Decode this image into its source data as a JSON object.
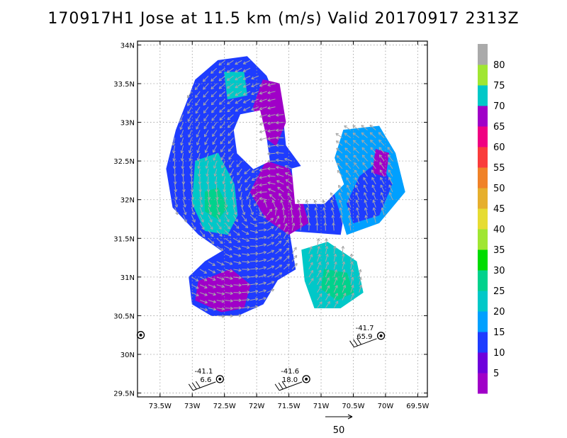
{
  "title": "170917H1 Jose at 11.5 km (m/s) Valid 20170917  2313Z",
  "chart_data": {
    "type": "heatmap",
    "title": "170917H1 Jose at 11.5 km (m/s) Valid 20170917  2313Z",
    "x_ticks": [
      "73.5W",
      "73W",
      "72.5W",
      "72W",
      "71.5W",
      "71W",
      "70.5W",
      "70W",
      "69.5W"
    ],
    "y_ticks": [
      "29.5N",
      "30N",
      "30.5N",
      "31N",
      "31.5N",
      "32N",
      "32.5N",
      "33N",
      "33.5N",
      "34N"
    ],
    "xlim": [
      -73.85,
      -69.35
    ],
    "ylim": [
      29.45,
      34.05
    ],
    "grid": true,
    "colorbar": {
      "labels": [
        "5",
        "10",
        "15",
        "20",
        "25",
        "30",
        "35",
        "40",
        "45",
        "50",
        "55",
        "60",
        "65",
        "70",
        "75",
        "80"
      ],
      "colors": [
        "#a000c8",
        "#6e00dc",
        "#1e3cff",
        "#00a0ff",
        "#00c8c8",
        "#00d28c",
        "#00dc00",
        "#a0e632",
        "#e6dc32",
        "#e6af2d",
        "#f08228",
        "#fa3c3c",
        "#f00082",
        "#a000c8",
        "#00c8c8",
        "#a0e632",
        "#aaaaaa"
      ]
    },
    "regions": [
      {
        "name": "north lobe",
        "color": "#1e3cff",
        "poly": [
          [
            -72.95,
            33.55
          ],
          [
            -72.6,
            33.8
          ],
          [
            -72.15,
            33.85
          ],
          [
            -71.85,
            33.6
          ],
          [
            -71.6,
            33.1
          ],
          [
            -71.55,
            32.7
          ],
          [
            -71.2,
            32.3
          ],
          [
            -70.6,
            32.05
          ],
          [
            -70.7,
            31.55
          ],
          [
            -71.5,
            31.6
          ],
          [
            -71.4,
            31.1
          ],
          [
            -71.9,
            30.85
          ],
          [
            -72.3,
            31.2
          ],
          [
            -72.9,
            31.55
          ],
          [
            -73.3,
            31.9
          ],
          [
            -73.4,
            32.4
          ],
          [
            -73.25,
            32.9
          ]
        ]
      },
      {
        "name": "southwest lobe",
        "color": "#1e3cff",
        "poly": [
          [
            -72.4,
            31.4
          ],
          [
            -72.0,
            31.25
          ],
          [
            -71.65,
            31.0
          ],
          [
            -71.9,
            30.65
          ],
          [
            -72.3,
            30.5
          ],
          [
            -72.7,
            30.5
          ],
          [
            -73.0,
            30.65
          ],
          [
            -73.05,
            31.0
          ],
          [
            -72.8,
            31.2
          ]
        ]
      },
      {
        "name": "southeast lobe",
        "color": "#00c8c8",
        "poly": [
          [
            -71.3,
            31.35
          ],
          [
            -70.9,
            31.45
          ],
          [
            -70.45,
            31.2
          ],
          [
            -70.35,
            30.8
          ],
          [
            -70.7,
            30.6
          ],
          [
            -71.1,
            30.6
          ],
          [
            -71.25,
            30.95
          ]
        ]
      },
      {
        "name": "east lobe",
        "color": "#00a0ff",
        "poly": [
          [
            -70.65,
            32.9
          ],
          [
            -70.1,
            32.95
          ],
          [
            -69.85,
            32.6
          ],
          [
            -69.7,
            32.1
          ],
          [
            -70.1,
            31.7
          ],
          [
            -70.6,
            31.55
          ],
          [
            -70.8,
            32.1
          ],
          [
            -70.8,
            32.5
          ]
        ]
      },
      {
        "name": "east lobe core",
        "color": "#1e3cff",
        "poly": [
          [
            -70.4,
            32.3
          ],
          [
            -70.1,
            32.5
          ],
          [
            -69.9,
            32.2
          ],
          [
            -70.1,
            31.8
          ],
          [
            -70.5,
            31.7
          ],
          [
            -70.6,
            31.95
          ]
        ]
      },
      {
        "name": "purple north",
        "color": "#a000c8",
        "poly": [
          [
            -71.9,
            33.55
          ],
          [
            -71.65,
            33.5
          ],
          [
            -71.55,
            33.0
          ],
          [
            -71.7,
            32.7
          ],
          [
            -71.95,
            32.85
          ],
          [
            -72.05,
            33.2
          ]
        ]
      },
      {
        "name": "purple center",
        "color": "#a000c8",
        "poly": [
          [
            -71.85,
            32.5
          ],
          [
            -71.5,
            32.4
          ],
          [
            -71.3,
            32.0
          ],
          [
            -71.2,
            31.7
          ],
          [
            -71.5,
            31.55
          ],
          [
            -71.85,
            31.75
          ],
          [
            -72.1,
            32.1
          ]
        ]
      },
      {
        "name": "purple southwest",
        "color": "#a000c8",
        "poly": [
          [
            -72.7,
            31.0
          ],
          [
            -72.4,
            31.1
          ],
          [
            -72.1,
            30.9
          ],
          [
            -72.2,
            30.6
          ],
          [
            -72.55,
            30.55
          ],
          [
            -72.95,
            30.7
          ],
          [
            -72.9,
            30.95
          ]
        ]
      },
      {
        "name": "cyan west",
        "color": "#00c8c8",
        "poly": [
          [
            -72.95,
            32.5
          ],
          [
            -72.6,
            32.6
          ],
          [
            -72.35,
            32.2
          ],
          [
            -72.3,
            31.8
          ],
          [
            -72.45,
            31.55
          ],
          [
            -72.8,
            31.6
          ],
          [
            -73.0,
            31.95
          ]
        ]
      },
      {
        "name": "green west",
        "color": "#00d28c",
        "poly": [
          [
            -72.8,
            32.1
          ],
          [
            -72.6,
            32.15
          ],
          [
            -72.45,
            31.9
          ],
          [
            -72.6,
            31.75
          ],
          [
            -72.8,
            31.85
          ]
        ]
      },
      {
        "name": "green southeast",
        "color": "#00d28c",
        "poly": [
          [
            -70.95,
            31.1
          ],
          [
            -70.6,
            31.05
          ],
          [
            -70.5,
            30.8
          ],
          [
            -70.75,
            30.7
          ],
          [
            -71.0,
            30.85
          ]
        ]
      },
      {
        "name": "cyan north",
        "color": "#00c8c8",
        "poly": [
          [
            -72.5,
            33.65
          ],
          [
            -72.2,
            33.65
          ],
          [
            -72.15,
            33.35
          ],
          [
            -72.45,
            33.3
          ]
        ]
      },
      {
        "name": "hole",
        "color": "#ffffff",
        "poly": [
          [
            -72.25,
            33.1
          ],
          [
            -71.95,
            33.15
          ],
          [
            -71.85,
            32.8
          ],
          [
            -71.8,
            32.5
          ],
          [
            -72.05,
            32.4
          ],
          [
            -72.3,
            32.6
          ],
          [
            -72.35,
            32.9
          ]
        ]
      },
      {
        "name": "hole east",
        "color": "#ffffff",
        "poly": [
          [
            -71.45,
            32.4
          ],
          [
            -70.8,
            32.55
          ],
          [
            -70.65,
            32.2
          ],
          [
            -70.95,
            31.95
          ],
          [
            -71.4,
            31.95
          ]
        ]
      },
      {
        "name": "purple east spot",
        "color": "#a000c8",
        "poly": [
          [
            -70.15,
            32.65
          ],
          [
            -69.95,
            32.6
          ],
          [
            -70.0,
            32.3
          ],
          [
            -70.2,
            32.35
          ]
        ]
      }
    ],
    "annotations": [
      {
        "lines": [
          "-41.1",
          "6.6"
        ],
        "lon": -72.57,
        "lat": 29.68
      },
      {
        "lines": [
          "-41.6",
          "18.0"
        ],
        "lon": -71.23,
        "lat": 29.68
      },
      {
        "lines": [
          "-41.7",
          "65.9"
        ],
        "lon": -70.07,
        "lat": 30.24
      }
    ],
    "storm_symbol_only": {
      "lon": -73.8,
      "lat": 30.25
    },
    "reference_vector_label": "50"
  }
}
